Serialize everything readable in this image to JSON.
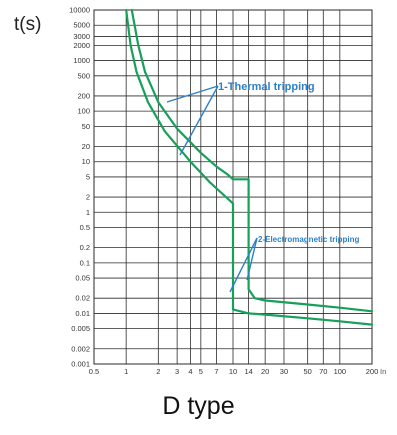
{
  "chart_data": {
    "type": "line",
    "title": "D type",
    "ylabel": "t(s)",
    "xlabel": "In",
    "xscale": "log",
    "yscale": "log",
    "xlim": [
      0.5,
      200
    ],
    "ylim": [
      0.001,
      10000
    ],
    "grid": true,
    "x_ticks": [
      {
        "value": 0.5,
        "label": "0.5"
      },
      {
        "value": 1,
        "label": "1"
      },
      {
        "value": 2,
        "label": "2"
      },
      {
        "value": 3,
        "label": "3"
      },
      {
        "value": 4,
        "label": "4"
      },
      {
        "value": 5,
        "label": "5"
      },
      {
        "value": 7,
        "label": "7"
      },
      {
        "value": 10,
        "label": "10"
      },
      {
        "value": 14,
        "label": "14"
      },
      {
        "value": 20,
        "label": "20"
      },
      {
        "value": 30,
        "label": "30"
      },
      {
        "value": 50,
        "label": "50"
      },
      {
        "value": 70,
        "label": "70"
      },
      {
        "value": 100,
        "label": "100"
      },
      {
        "value": 200,
        "label": "200"
      }
    ],
    "y_ticks": [
      {
        "value": 10000,
        "label": "10000"
      },
      {
        "value": 5000,
        "label": "5000"
      },
      {
        "value": 3000,
        "label": "3000"
      },
      {
        "value": 2000,
        "label": "2000"
      },
      {
        "value": 1000,
        "label": "1000"
      },
      {
        "value": 500,
        "label": "500"
      },
      {
        "value": 200,
        "label": "200"
      },
      {
        "value": 100,
        "label": "100"
      },
      {
        "value": 50,
        "label": "50"
      },
      {
        "value": 20,
        "label": "20"
      },
      {
        "value": 10,
        "label": "10"
      },
      {
        "value": 5,
        "label": "5"
      },
      {
        "value": 2,
        "label": "2"
      },
      {
        "value": 1,
        "label": "1"
      },
      {
        "value": 0.5,
        "label": "0.5"
      },
      {
        "value": 0.2,
        "label": "0.2"
      },
      {
        "value": 0.1,
        "label": "0.1"
      },
      {
        "value": 0.05,
        "label": "0.05"
      },
      {
        "value": 0.02,
        "label": "0.02"
      },
      {
        "value": 0.01,
        "label": "0.01"
      },
      {
        "value": 0.005,
        "label": "0.005"
      },
      {
        "value": 0.002,
        "label": "0.002"
      },
      {
        "value": 0.001,
        "label": "0.001"
      }
    ],
    "series": [
      {
        "points": [
          [
            1.13,
            10000
          ],
          [
            1.3,
            2000
          ],
          [
            1.5,
            600
          ],
          [
            2,
            150
          ],
          [
            3,
            45
          ],
          [
            5,
            15
          ],
          [
            7,
            8
          ],
          [
            9,
            5.5
          ],
          [
            10,
            4.5
          ],
          [
            14,
            4.5
          ],
          [
            14,
            0.03
          ],
          [
            16,
            0.02
          ],
          [
            20,
            0.018
          ],
          [
            50,
            0.015
          ],
          [
            100,
            0.013
          ],
          [
            200,
            0.011
          ]
        ]
      },
      {
        "points": [
          [
            1.0,
            10000
          ],
          [
            1.1,
            2000
          ],
          [
            1.25,
            600
          ],
          [
            1.6,
            150
          ],
          [
            2.3,
            40
          ],
          [
            4,
            10
          ],
          [
            6,
            4
          ],
          [
            8,
            2.3
          ],
          [
            10,
            1.5
          ],
          [
            10,
            0.012
          ],
          [
            14,
            0.01
          ],
          [
            20,
            0.0095
          ],
          [
            50,
            0.008
          ],
          [
            100,
            0.007
          ],
          [
            200,
            0.006
          ]
        ]
      }
    ],
    "annotations": [
      {
        "text": "1-Thermal tripping"
      },
      {
        "text": "2-Electromagnetic tripping"
      }
    ],
    "colors": {
      "curve": "#17a05a",
      "annotation": "#2e7fc6",
      "grid": "#2b2b2b"
    }
  }
}
